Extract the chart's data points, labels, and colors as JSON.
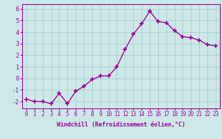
{
  "x": [
    0,
    1,
    2,
    3,
    4,
    5,
    6,
    7,
    8,
    9,
    10,
    11,
    12,
    13,
    14,
    15,
    16,
    17,
    18,
    19,
    20,
    21,
    22,
    23
  ],
  "y": [
    -1.8,
    -2.0,
    -2.0,
    -2.2,
    -1.3,
    -2.2,
    -1.1,
    -0.7,
    -0.1,
    0.2,
    0.2,
    1.0,
    2.5,
    3.8,
    4.7,
    5.8,
    4.9,
    4.8,
    4.1,
    3.6,
    3.5,
    3.3,
    2.9,
    2.8
  ],
  "line_color": "#990099",
  "marker": "+",
  "marker_size": 4,
  "marker_lw": 1.2,
  "line_width": 1.0,
  "xlim": [
    -0.5,
    23.5
  ],
  "ylim": [
    -2.6,
    6.4
  ],
  "yticks": [
    -2,
    -1,
    0,
    1,
    2,
    3,
    4,
    5,
    6
  ],
  "xtick_labels": [
    "0",
    "1",
    "2",
    "3",
    "4",
    "5",
    "6",
    "7",
    "8",
    "9",
    "10",
    "11",
    "12",
    "13",
    "14",
    "15",
    "16",
    "17",
    "18",
    "19",
    "20",
    "21",
    "22",
    "23"
  ],
  "xlabel": "Windchill (Refroidissement éolien,°C)",
  "background_color": "#cde8e8",
  "grid_color": "#aacccc",
  "spine_color": "#990099",
  "tick_color": "#990099",
  "label_color": "#990099",
  "font_family": "monospace",
  "tick_fontsize": 5.5,
  "ytick_fontsize": 6.0,
  "xlabel_fontsize": 6.0
}
